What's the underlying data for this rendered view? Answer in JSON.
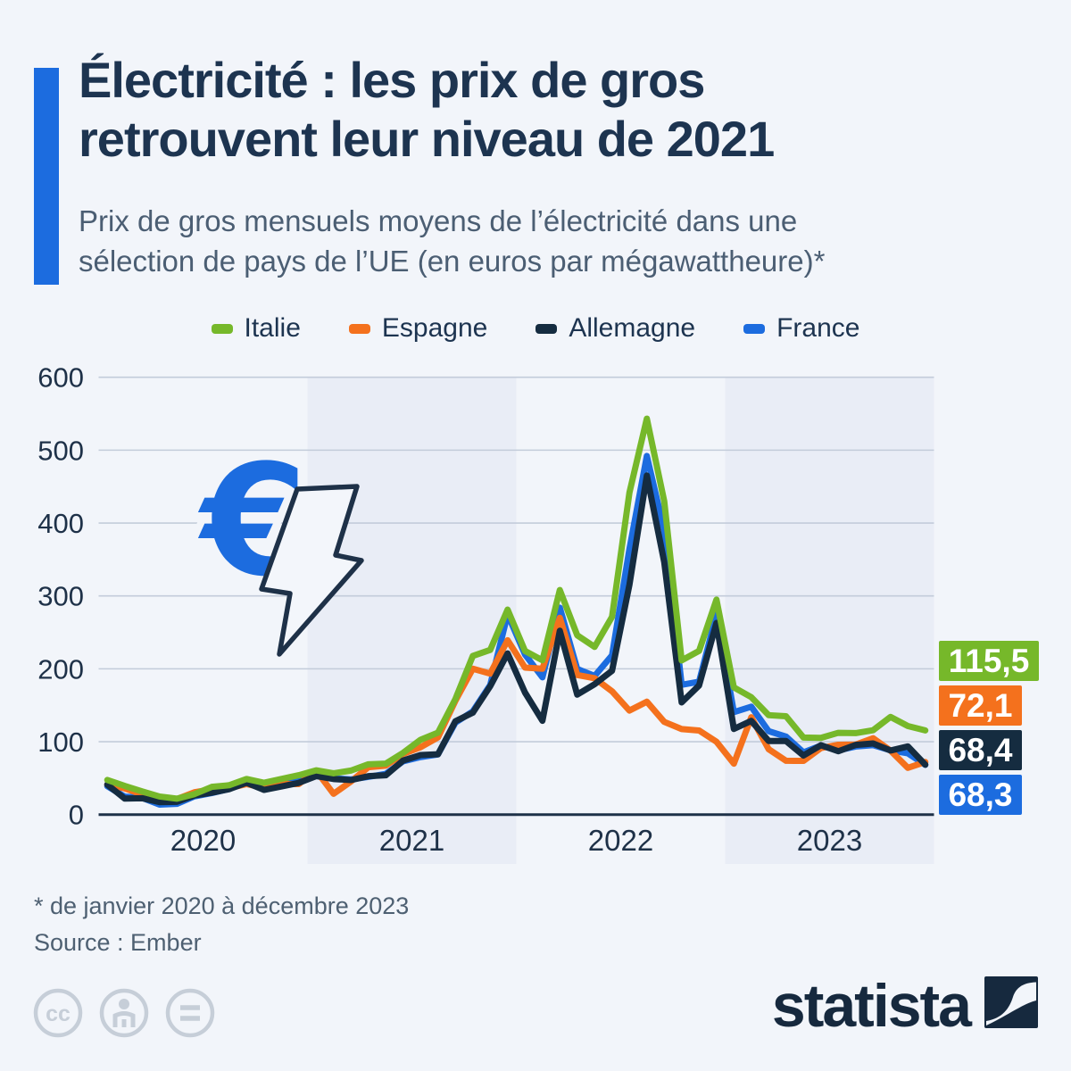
{
  "header": {
    "title_line1": "Électricité : les prix de gros",
    "title_line2": "retrouvent leur niveau de 2021",
    "subtitle_line1": "Prix de gros mensuels moyens de l’électricité dans une",
    "subtitle_line2": "sélection de pays de l’UE (en euros par mégawattheure)*",
    "accent_color": "#1c6cdf"
  },
  "chart_data": {
    "type": "line",
    "x_unit": "month",
    "x_range": "janvier 2020 - décembre 2023",
    "year_labels": [
      "2020",
      "2021",
      "2022",
      "2023"
    ],
    "shaded_year_indexes": [
      1,
      3
    ],
    "ylim": [
      0,
      600
    ],
    "yticks": [
      0,
      100,
      200,
      300,
      400,
      500,
      600
    ],
    "grid": true,
    "legend_position": "top",
    "colors": {
      "band": "#e9edf6",
      "gridline": "#c3ccda",
      "axis": "#1e3148",
      "tick_text": "#1e3148",
      "euro_icon": "#1c6cdf",
      "bolt_icon": "#1e3148"
    },
    "series": [
      {
        "name": "Italie",
        "color": "#76b82a",
        "end_label": "115,5",
        "values": [
          47.5,
          39.3,
          31.8,
          24.8,
          21.8,
          28.0,
          38.0,
          40.3,
          48.8,
          43.6,
          48.9,
          54.0,
          60.7,
          56.6,
          60.4,
          69.0,
          69.9,
          84.8,
          102.7,
          112.4,
          158.6,
          217.6,
          225.9,
          281.2,
          224.5,
          211.7,
          308.1,
          246.0,
          230.1,
          271.3,
          441.7,
          543.2,
          429.9,
          211.5,
          224.5,
          294.9,
          174.5,
          161.1,
          136.4,
          134.9,
          105.7,
          105.3,
          112.2,
          111.8,
          115.7,
          134.0,
          121.5,
          115.5
        ]
      },
      {
        "name": "Espagne",
        "color": "#f4711d",
        "end_label": "72,1",
        "values": [
          41.1,
          35.9,
          27.7,
          17.6,
          21.3,
          30.6,
          34.6,
          36.2,
          41.9,
          36.6,
          41.9,
          41.9,
          60.2,
          28.5,
          45.4,
          65.0,
          67.1,
          83.3,
          92.4,
          105.9,
          156.1,
          200.1,
          193.4,
          239.2,
          201.7,
          200.2,
          270.0,
          191.5,
          187.1,
          169.2,
          142.7,
          154.9,
          127.2,
          117.3,
          115.4,
          100.0,
          69.9,
          133.5,
          89.7,
          73.8,
          73.7,
          91.3,
          95.8,
          96.0,
          104.8,
          87.8,
          64.1,
          72.1
        ]
      },
      {
        "name": "Allemagne",
        "color": "#152c40",
        "end_label": "68,4",
        "values": [
          41.1,
          21.9,
          22.5,
          17.1,
          17.6,
          26.2,
          30.0,
          34.9,
          43.7,
          33.9,
          38.6,
          43.5,
          52.8,
          48.8,
          47.4,
          52.7,
          53.9,
          74.2,
          81.7,
          82.7,
          128.0,
          139.8,
          176.1,
          221.1,
          167.4,
          128.7,
          252.2,
          164.6,
          178.9,
          197.3,
          315.3,
          465.2,
          346.3,
          153.9,
          177.1,
          262.9,
          117.5,
          128.6,
          101.0,
          100.9,
          81.0,
          95.2,
          86.9,
          95.6,
          97.6,
          87.9,
          93.5,
          68.4
        ]
      },
      {
        "name": "France",
        "color": "#1c6cdf",
        "end_label": "68,3",
        "values": [
          39.0,
          24.7,
          22.9,
          13.7,
          14.8,
          25.0,
          29.6,
          35.1,
          45.3,
          39.4,
          42.0,
          48.7,
          60.0,
          49.7,
          48.2,
          51.8,
          55.8,
          73.2,
          78.9,
          82.6,
          126.1,
          141.6,
          177.7,
          274.9,
          219.6,
          188.3,
          283.9,
          199.8,
          190.2,
          218.5,
          364.4,
          492.0,
          390.1,
          178.0,
          182.3,
          274.9,
          140.5,
          148.0,
          114.4,
          107.0,
          85.4,
          94.6,
          88.1,
          93.4,
          95.3,
          88.2,
          84.0,
          68.3
        ]
      }
    ]
  },
  "icons": {
    "euro_symbol": "€",
    "cc_text": "cc"
  },
  "footer": {
    "footnote": "* de janvier 2020 à décembre 2023",
    "source": "Source : Ember"
  },
  "branding": {
    "logo_text": "statista"
  }
}
